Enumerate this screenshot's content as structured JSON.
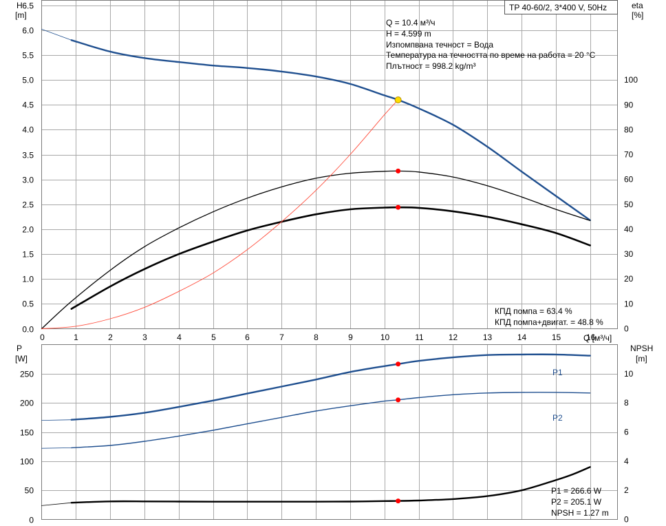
{
  "chart_data": [
    {
      "type": "line",
      "title": "TP 40-60/2, 3*400 V, 50Hz",
      "xlabel": "Q [м³/ч]",
      "ylabel": "H [m]",
      "ylabel_unit": "[m]",
      "ylabel_name": "H",
      "y2label_name": "eta",
      "y2label_unit": "[%]",
      "xlim": [
        0,
        16.8
      ],
      "ylim": [
        0,
        6.6
      ],
      "y2lim": [
        0,
        132
      ],
      "x_ticks": [
        "0",
        "1",
        "2",
        "3",
        "4",
        "5",
        "6",
        "7",
        "8",
        "9",
        "10",
        "11",
        "12",
        "13",
        "14",
        "15",
        "16"
      ],
      "y_ticks": [
        "0.0",
        "0.5",
        "1.0",
        "1.5",
        "2.0",
        "2.5",
        "3.0",
        "3.5",
        "4.0",
        "4.5",
        "5.0",
        "5.5",
        "6.0",
        "6.5"
      ],
      "y2_ticks": [
        "0",
        "10",
        "20",
        "30",
        "40",
        "50",
        "60",
        "70",
        "80",
        "90",
        "100"
      ],
      "grid": true,
      "info_lines": [
        "Q = 10.4 м³/ч",
        "H = 4.599 m",
        "Изпомпвана течност = Вода",
        "Температура на течността по време на работа = 20 °C",
        "Плътност = 998.2 kg/m³"
      ],
      "efficiency_lines": [
        "КПД помпа = 63.4 %",
        "КПД помпа+двигат. = 48.8 %"
      ],
      "series": [
        {
          "key": "H_ext",
          "axis": "left",
          "color": "#1f4f8f",
          "width": 0.8,
          "x": [
            0,
            0.87
          ],
          "y": [
            6.02,
            5.8
          ]
        },
        {
          "key": "H",
          "axis": "left",
          "color": "#1f4f8f",
          "width": 2.4,
          "x": [
            0.87,
            2,
            3,
            4,
            5,
            6,
            7,
            8,
            9,
            10,
            10.4,
            11,
            12,
            13,
            14,
            15,
            16
          ],
          "y": [
            5.8,
            5.57,
            5.44,
            5.36,
            5.29,
            5.24,
            5.17,
            5.07,
            4.92,
            4.69,
            4.6,
            4.43,
            4.1,
            3.66,
            3.16,
            2.67,
            2.18
          ]
        },
        {
          "key": "eta_pump",
          "axis": "right",
          "color": "#000000",
          "width": 1.3,
          "x": [
            0,
            0.87,
            2,
            3,
            4,
            5,
            6,
            7,
            8,
            9,
            10,
            10.4,
            11,
            12,
            13,
            14,
            15,
            16
          ],
          "y": [
            0,
            11,
            23.5,
            33,
            40.5,
            47,
            52.5,
            57,
            60.5,
            62.5,
            63.3,
            63.4,
            63,
            61,
            57.5,
            53,
            48,
            43.5
          ]
        },
        {
          "key": "eta_total",
          "axis": "right",
          "color": "#000000",
          "width": 2.6,
          "x": [
            0.87,
            2,
            3,
            4,
            5,
            6,
            7,
            8,
            9,
            10,
            10.4,
            11,
            12,
            13,
            14,
            15,
            16
          ],
          "y": [
            8,
            17,
            24,
            30,
            35,
            39.5,
            43,
            46,
            48,
            48.7,
            48.8,
            48.6,
            47.2,
            45,
            42,
            38.5,
            33.5
          ]
        },
        {
          "key": "system_curve",
          "axis": "left",
          "color": "#ff4b3a",
          "width": 0.9,
          "x": [
            0,
            1,
            2,
            3,
            4,
            5,
            6,
            7,
            8,
            9,
            10,
            10.4
          ],
          "y": [
            0,
            0.05,
            0.2,
            0.43,
            0.75,
            1.12,
            1.59,
            2.15,
            2.78,
            3.5,
            4.3,
            4.6
          ]
        }
      ],
      "operating_point": {
        "x": 10.4,
        "y": 4.599,
        "color": "#ffdd00"
      },
      "duty_markers": [
        {
          "x": 10.4,
          "y": 63.4,
          "axis": "right",
          "color": "#ff0000"
        },
        {
          "x": 10.4,
          "y": 48.8,
          "axis": "right",
          "color": "#ff0000"
        }
      ]
    },
    {
      "type": "line",
      "xlabel": "",
      "ylabel_name": "P",
      "ylabel_unit": "[W]",
      "y2label_name": "NPSH",
      "y2label_unit": "[m]",
      "xlim": [
        0,
        16.8
      ],
      "ylim": [
        0,
        300
      ],
      "y2lim": [
        0,
        12
      ],
      "y_ticks": [
        "0",
        "50",
        "100",
        "150",
        "200",
        "250"
      ],
      "y2_ticks": [
        "0",
        "2",
        "4",
        "6",
        "8",
        "10"
      ],
      "grid": true,
      "info_lines": [
        "P1 = 266.6 W",
        "P2 = 205.1 W",
        "NPSH = 1.27 m"
      ],
      "series": [
        {
          "key": "P1_ext",
          "name": "",
          "axis": "left",
          "color": "#1f4f8f",
          "width": 0.8,
          "x": [
            0,
            0.87
          ],
          "y": [
            170,
            171
          ]
        },
        {
          "key": "P1",
          "name": "P1",
          "axis": "left",
          "color": "#1f4f8f",
          "width": 2.4,
          "x": [
            0.87,
            2,
            3,
            4,
            5,
            6,
            7,
            8,
            9,
            10,
            10.4,
            11,
            12,
            13,
            14,
            15,
            16
          ],
          "y": [
            171,
            176,
            183,
            193,
            204,
            216,
            228,
            240,
            253,
            263,
            266.6,
            272,
            278,
            282,
            283,
            283,
            281
          ]
        },
        {
          "key": "P2_ext",
          "name": "",
          "axis": "left",
          "color": "#1f4f8f",
          "width": 0.8,
          "x": [
            0,
            0.87
          ],
          "y": [
            122,
            123
          ]
        },
        {
          "key": "P2",
          "name": "P2",
          "axis": "left",
          "color": "#1f4f8f",
          "width": 1.4,
          "x": [
            0.87,
            2,
            3,
            4,
            5,
            6,
            7,
            8,
            9,
            10,
            10.4,
            11,
            12,
            13,
            14,
            15,
            16
          ],
          "y": [
            123,
            127,
            134,
            143,
            153,
            164,
            175,
            186,
            195,
            203,
            205.1,
            209,
            214,
            217,
            218,
            218,
            217
          ]
        },
        {
          "key": "NPSH_ext",
          "name": "",
          "axis": "right",
          "color": "#000000",
          "width": 0.8,
          "x": [
            0,
            0.87
          ],
          "y": [
            0.95,
            1.15
          ]
        },
        {
          "key": "NPSH",
          "name": "",
          "axis": "right",
          "color": "#000000",
          "width": 2.4,
          "x": [
            0.87,
            2,
            3,
            4,
            5,
            6,
            7,
            8,
            9,
            10,
            10.4,
            11,
            12,
            13,
            14,
            15,
            15.5,
            16
          ],
          "y": [
            1.15,
            1.24,
            1.24,
            1.23,
            1.22,
            1.22,
            1.22,
            1.22,
            1.23,
            1.26,
            1.27,
            1.3,
            1.4,
            1.6,
            2.0,
            2.7,
            3.1,
            3.6
          ]
        }
      ],
      "duty_markers": [
        {
          "x": 10.4,
          "y": 266.6,
          "axis": "left",
          "color": "#ff0000"
        },
        {
          "x": 10.4,
          "y": 205.1,
          "axis": "left",
          "color": "#ff0000"
        },
        {
          "x": 10.4,
          "y": 1.27,
          "axis": "right",
          "color": "#ff0000"
        }
      ]
    }
  ]
}
